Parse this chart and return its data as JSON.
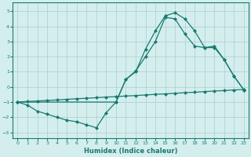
{
  "line1_x": [
    0,
    1,
    2,
    3,
    4,
    5,
    6,
    7,
    8,
    9,
    10,
    11,
    12,
    13,
    14,
    15,
    16,
    17,
    18,
    19,
    20,
    21,
    22,
    23
  ],
  "line1_y": [
    -1.0,
    -1.2,
    -1.6,
    -1.8,
    -2.0,
    -2.2,
    -2.3,
    -2.5,
    -2.7,
    -1.7,
    -1.0,
    0.5,
    1.0,
    2.5,
    3.7,
    4.7,
    4.9,
    4.5,
    3.7,
    2.6,
    2.6,
    1.8,
    0.7,
    -0.2
  ],
  "line2_x": [
    0,
    1,
    2,
    3,
    4,
    5,
    6,
    7,
    8,
    9,
    10,
    11,
    12,
    13,
    14,
    15,
    16,
    17,
    18,
    19,
    20,
    21,
    22,
    23
  ],
  "line2_y": [
    -1.0,
    -0.96,
    -0.93,
    -0.89,
    -0.86,
    -0.82,
    -0.78,
    -0.75,
    -0.71,
    -0.67,
    -0.64,
    -0.6,
    -0.57,
    -0.53,
    -0.49,
    -0.46,
    -0.42,
    -0.38,
    -0.35,
    -0.31,
    -0.27,
    -0.24,
    -0.2,
    -0.17
  ],
  "line3_x": [
    0,
    10,
    11,
    12,
    13,
    14,
    15,
    16,
    17,
    18,
    19,
    20,
    21,
    22,
    23
  ],
  "line3_y": [
    -1.0,
    -1.0,
    0.5,
    1.05,
    2.0,
    3.0,
    4.6,
    4.5,
    3.5,
    2.7,
    2.6,
    2.7,
    1.8,
    0.7,
    -0.2
  ],
  "line_color": "#1a7a6e",
  "background_color": "#d4eeee",
  "grid_color": "#aacece",
  "xlabel": "Humidex (Indice chaleur)",
  "xlim": [
    -0.5,
    23.5
  ],
  "ylim": [
    -3.4,
    5.6
  ],
  "xticks": [
    0,
    1,
    2,
    3,
    4,
    5,
    6,
    7,
    8,
    9,
    10,
    11,
    12,
    13,
    14,
    15,
    16,
    17,
    18,
    19,
    20,
    21,
    22,
    23
  ],
  "yticks": [
    -3,
    -2,
    -1,
    0,
    1,
    2,
    3,
    4,
    5
  ],
  "marker": "D",
  "marker_size": 2.0,
  "line_width": 0.9
}
